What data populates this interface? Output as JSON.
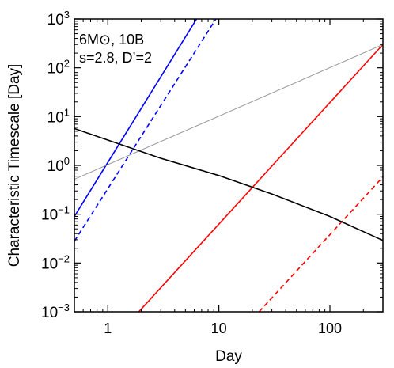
{
  "chart_data": {
    "type": "line",
    "xlabel": "Day",
    "ylabel": "Characteristic Timescale [Day]",
    "xscale": "log",
    "yscale": "log",
    "xlim": [
      0.5,
      300
    ],
    "ylim": [
      0.001,
      1000
    ],
    "grid": false,
    "x_ticks": [
      {
        "value": 1,
        "label": "1"
      },
      {
        "value": 10,
        "label": "10"
      },
      {
        "value": 100,
        "label": "100"
      }
    ],
    "y_ticks": [
      {
        "value": 0.001,
        "base": "10",
        "exp": "−3"
      },
      {
        "value": 0.01,
        "base": "10",
        "exp": "−2"
      },
      {
        "value": 0.1,
        "base": "10",
        "exp": "−1"
      },
      {
        "value": 1,
        "base": "10",
        "exp": "0"
      },
      {
        "value": 10,
        "base": "10",
        "exp": "1"
      },
      {
        "value": 100,
        "base": "10",
        "exp": "2"
      },
      {
        "value": 1000,
        "base": "10",
        "exp": "3"
      }
    ],
    "annotation": {
      "line1": "6M⊙, 10B",
      "line2": "s=2.8, D’=2"
    },
    "series": [
      {
        "color": "#0000ff",
        "dash": "solid",
        "points": [
          [
            0.5,
            0.09
          ],
          [
            6.3,
            1000
          ]
        ]
      },
      {
        "color": "#0000ff",
        "dash": "dashed",
        "points": [
          [
            0.5,
            0.028
          ],
          [
            9.4,
            1000
          ]
        ]
      },
      {
        "color": "#ff0000",
        "dash": "solid",
        "points": [
          [
            1.9,
            0.001
          ],
          [
            300,
            300
          ]
        ]
      },
      {
        "color": "#ff0000",
        "dash": "dashed",
        "points": [
          [
            23,
            0.001
          ],
          [
            300,
            0.58
          ]
        ]
      },
      {
        "color": "#999999",
        "dash": "solid",
        "points": [
          [
            0.5,
            0.52
          ],
          [
            300,
            300
          ]
        ]
      },
      {
        "color": "#000000",
        "dash": "solid",
        "points": [
          [
            0.5,
            5.7
          ],
          [
            1,
            3.3
          ],
          [
            3,
            1.4
          ],
          [
            10,
            0.62
          ],
          [
            30,
            0.26
          ],
          [
            100,
            0.09
          ],
          [
            300,
            0.029
          ]
        ]
      }
    ]
  }
}
